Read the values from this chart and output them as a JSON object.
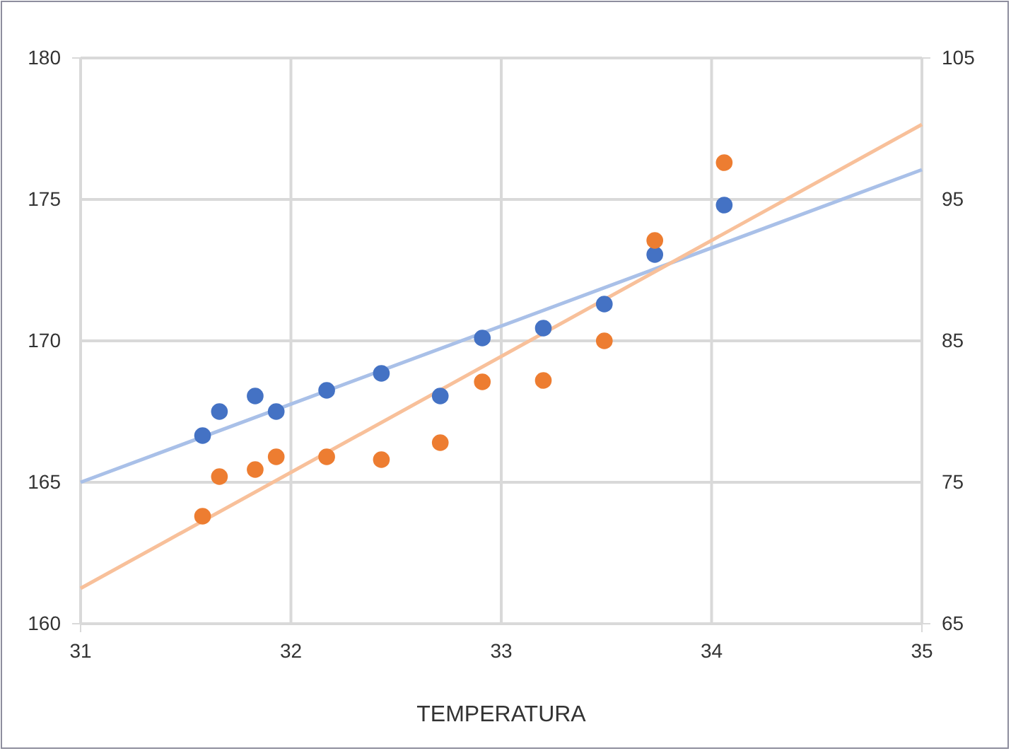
{
  "chart_data": {
    "type": "scatter",
    "xlabel": "TEMPERATURA",
    "xlim": [
      31,
      35
    ],
    "xticks": [
      31,
      32,
      33,
      34,
      35
    ],
    "ylim": [
      160,
      180
    ],
    "yticks": [
      160,
      165,
      170,
      175,
      180
    ],
    "y2lim": [
      65,
      105
    ],
    "y2ticks": [
      65,
      75,
      85,
      95,
      105
    ],
    "grid": true,
    "marker": "circle",
    "series": [
      {
        "color": "#4472c4",
        "x": [
          31.58,
          31.66,
          31.83,
          31.93,
          32.17,
          32.43,
          32.71,
          32.91,
          33.2,
          33.49,
          33.73,
          34.06
        ],
        "values": [
          166.65,
          167.5,
          168.05,
          167.5,
          168.25,
          168.85,
          168.05,
          170.1,
          170.45,
          171.3,
          173.05,
          174.8
        ]
      },
      {
        "axis": "y2",
        "color": "#ed7d31",
        "x": [
          31.58,
          31.66,
          31.83,
          31.93,
          32.17,
          32.43,
          32.71,
          32.91,
          33.2,
          33.49,
          33.73,
          34.06
        ],
        "values": [
          72.6,
          75.4,
          75.9,
          76.8,
          76.8,
          76.6,
          77.8,
          82.1,
          82.2,
          85.0,
          92.1,
          97.6
        ]
      },
      {
        "type": "line",
        "marker": "none",
        "color": "#a9c0e8",
        "x": [
          31,
          35
        ],
        "values": [
          165,
          176.05
        ]
      },
      {
        "type": "line",
        "marker": "none",
        "axis": "y2",
        "color": "#f8c09a",
        "x": [
          31,
          35
        ],
        "values": [
          67.5,
          100.3
        ]
      }
    ]
  }
}
